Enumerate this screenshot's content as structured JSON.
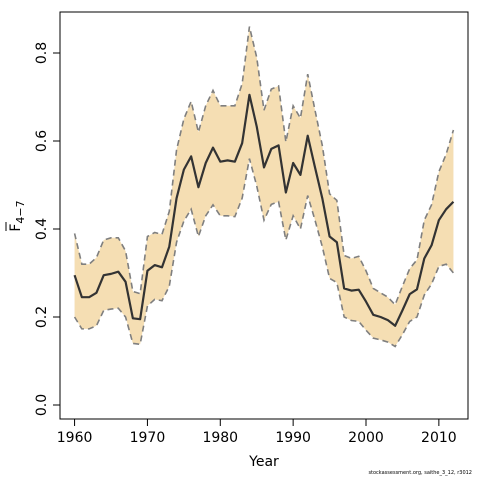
{
  "chart_data": {
    "type": "line",
    "xlabel": "Year",
    "ylabel": "F",
    "ylabel_sub": "4−7",
    "xlim": [
      1958,
      2014
    ],
    "ylim": [
      0.0,
      0.85
    ],
    "xticks": [
      1960,
      1970,
      1980,
      1990,
      2000,
      2010
    ],
    "yticks": [
      0.0,
      0.2,
      0.4,
      0.6,
      0.8
    ],
    "ytick_labels": [
      "0.0",
      "0.2",
      "0.4",
      "0.6",
      "0.8"
    ],
    "grid": false,
    "colors": {
      "band": "#f5deb3",
      "band_edge": "#7f7f7f",
      "line": "#333333"
    },
    "x": [
      1960,
      1961,
      1962,
      1963,
      1964,
      1965,
      1966,
      1967,
      1968,
      1969,
      1970,
      1971,
      1972,
      1973,
      1974,
      1975,
      1976,
      1977,
      1978,
      1979,
      1980,
      1981,
      1982,
      1983,
      1984,
      1985,
      1986,
      1987,
      1988,
      1989,
      1990,
      1991,
      1992,
      1993,
      1994,
      1995,
      1996,
      1997,
      1998,
      1999,
      2000,
      2001,
      2002,
      2003,
      2004,
      2005,
      2006,
      2007,
      2008,
      2009,
      2010,
      2011,
      2012
    ],
    "series": [
      {
        "role": "estimate",
        "values": [
          0.295,
          0.245,
          0.245,
          0.255,
          0.295,
          0.298,
          0.303,
          0.28,
          0.197,
          0.195,
          0.305,
          0.318,
          0.313,
          0.36,
          0.47,
          0.535,
          0.565,
          0.495,
          0.55,
          0.585,
          0.553,
          0.556,
          0.553,
          0.595,
          0.705,
          0.633,
          0.54,
          0.582,
          0.59,
          0.483,
          0.55,
          0.523,
          0.612,
          0.54,
          0.47,
          0.383,
          0.37,
          0.265,
          0.26,
          0.262,
          0.235,
          0.205,
          0.2,
          0.193,
          0.18,
          0.215,
          0.252,
          0.263,
          0.333,
          0.363,
          0.42,
          0.445,
          0.462
        ]
      },
      {
        "role": "upper",
        "values": [
          0.39,
          0.32,
          0.32,
          0.335,
          0.375,
          0.38,
          0.38,
          0.35,
          0.258,
          0.253,
          0.383,
          0.392,
          0.388,
          0.44,
          0.58,
          0.65,
          0.69,
          0.62,
          0.68,
          0.715,
          0.68,
          0.68,
          0.68,
          0.73,
          0.86,
          0.79,
          0.67,
          0.718,
          0.725,
          0.598,
          0.68,
          0.652,
          0.752,
          0.67,
          0.59,
          0.48,
          0.465,
          0.34,
          0.333,
          0.338,
          0.305,
          0.265,
          0.255,
          0.245,
          0.228,
          0.27,
          0.31,
          0.33,
          0.42,
          0.455,
          0.53,
          0.57,
          0.625
        ]
      },
      {
        "role": "lower",
        "values": [
          0.2,
          0.173,
          0.173,
          0.18,
          0.215,
          0.218,
          0.22,
          0.2,
          0.14,
          0.138,
          0.225,
          0.24,
          0.237,
          0.27,
          0.37,
          0.418,
          0.445,
          0.383,
          0.43,
          0.455,
          0.43,
          0.43,
          0.428,
          0.47,
          0.56,
          0.498,
          0.42,
          0.456,
          0.462,
          0.375,
          0.43,
          0.4,
          0.476,
          0.42,
          0.36,
          0.288,
          0.278,
          0.2,
          0.192,
          0.19,
          0.17,
          0.152,
          0.148,
          0.143,
          0.133,
          0.16,
          0.19,
          0.2,
          0.25,
          0.275,
          0.315,
          0.32,
          0.3
        ]
      }
    ]
  },
  "footer": "stockassessment.org, saithe_3_12, r3012"
}
